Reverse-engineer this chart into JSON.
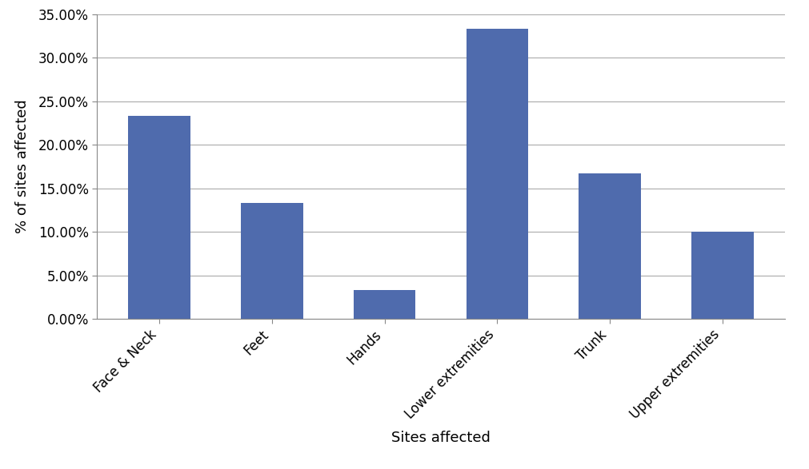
{
  "categories": [
    "Face & Neck",
    "Feet",
    "Hands",
    "Lower extremities",
    "Trunk",
    "Upper extremities"
  ],
  "values": [
    0.2333,
    0.1333,
    0.0333,
    0.3333,
    0.1667,
    0.1
  ],
  "bar_color": "#4F6BAD",
  "xlabel": "Sites affected",
  "ylabel": "% of sites affected",
  "ylim": [
    0,
    0.35
  ],
  "yticks": [
    0.0,
    0.05,
    0.1,
    0.15,
    0.2,
    0.25,
    0.3,
    0.35
  ],
  "ytick_labels": [
    "0.00%",
    "5.00%",
    "10.00%",
    "15.00%",
    "20.00%",
    "25.00%",
    "30.00%",
    "35.00%"
  ],
  "background_color": "#ffffff",
  "grid_color": "#aaaaaa",
  "xlabel_fontsize": 13,
  "ylabel_fontsize": 13,
  "tick_fontsize": 12,
  "bar_width": 0.55
}
